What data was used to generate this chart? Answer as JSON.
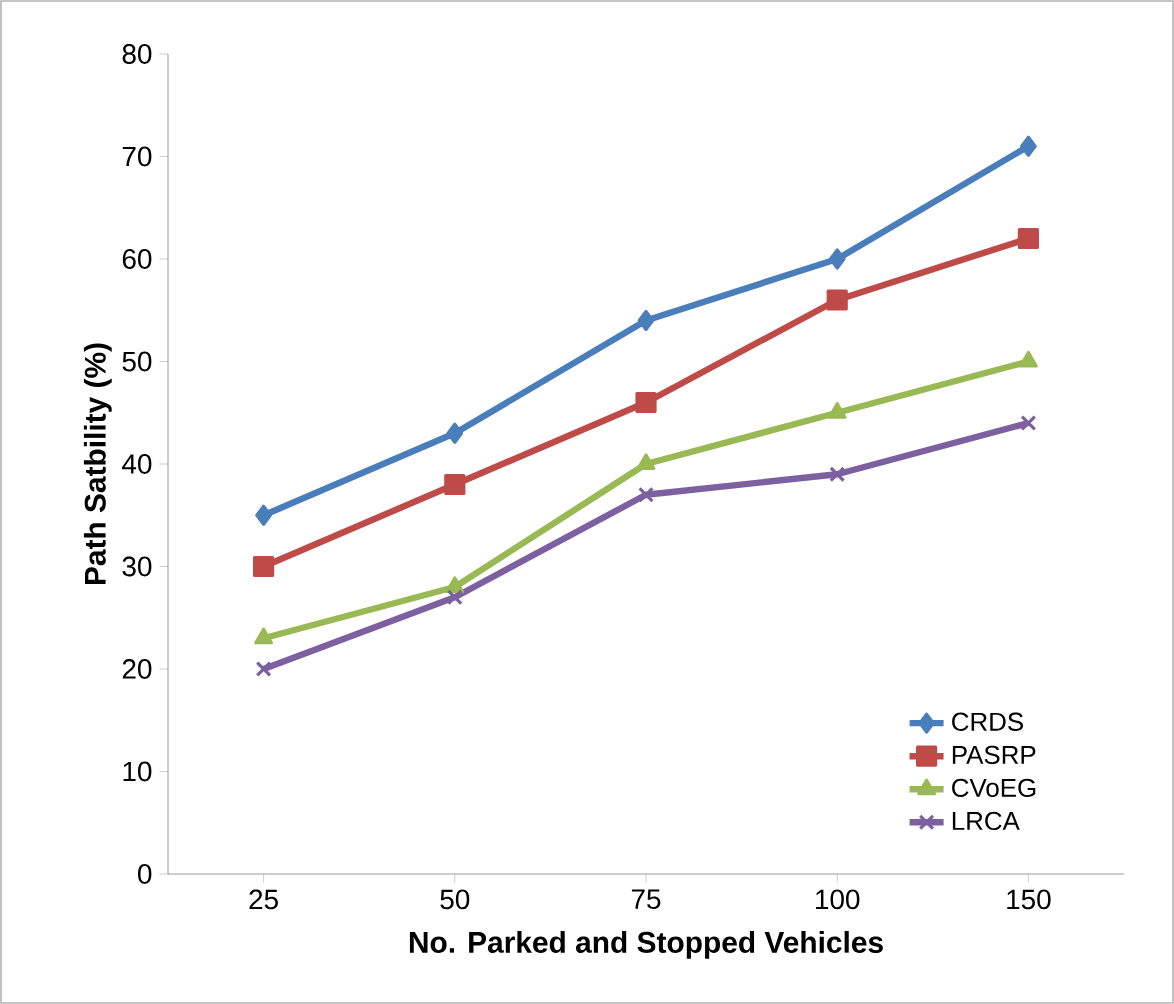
{
  "chart_data": {
    "type": "line",
    "xlabel": "No.  Parked and Stopped Vehicles",
    "ylabel": "Path Satbility (%)",
    "categories": [
      "25",
      "50",
      "75",
      "100",
      "150"
    ],
    "series": [
      {
        "name": "CRDS",
        "color": "#4a7ebb",
        "marker": "diamond",
        "values": [
          35,
          43,
          54,
          60,
          71
        ]
      },
      {
        "name": "PASRP",
        "color": "#be4b48",
        "marker": "square",
        "values": [
          30,
          38,
          46,
          56,
          62
        ]
      },
      {
        "name": "CVoEG",
        "color": "#98b954",
        "marker": "triangle",
        "values": [
          23,
          28,
          40,
          45,
          50
        ]
      },
      {
        "name": "LRCA",
        "color": "#7d60a0",
        "marker": "cross",
        "values": [
          20,
          27,
          37,
          39,
          44
        ]
      }
    ],
    "ylim": [
      0,
      80
    ],
    "yticks": [
      0,
      10,
      20,
      30,
      40,
      50,
      60,
      70,
      80
    ],
    "grid": false,
    "legend": "bottom right"
  }
}
